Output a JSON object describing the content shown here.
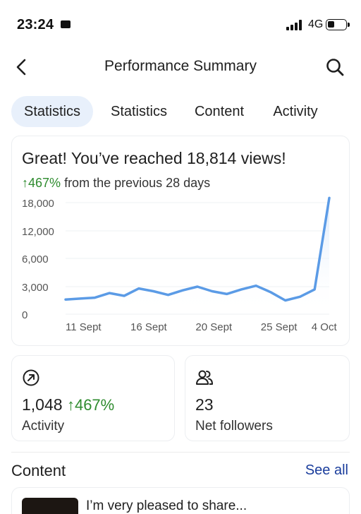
{
  "status_bar": {
    "time": "23:24",
    "network": "4G"
  },
  "header": {
    "title": "Performance Summary"
  },
  "tabs": [
    {
      "label": "Statistics",
      "active": true
    },
    {
      "label": "Statistics",
      "active": false
    },
    {
      "label": "Content",
      "active": false
    },
    {
      "label": "Activity",
      "active": false
    }
  ],
  "views_card": {
    "title": "Great! You’ve reached 18,814 views!",
    "change": "467%",
    "change_suffix": "from the previous 28 days"
  },
  "chart_data": {
    "type": "area",
    "title": "",
    "xlabel": "",
    "ylabel": "",
    "x_tick_labels": [
      "11 Sept",
      "16 Sept",
      "20 Sept",
      "25 Sept",
      "4 Oct"
    ],
    "y_tick_labels": [
      "18,000",
      "12,000",
      "6,000",
      "3,000",
      "0"
    ],
    "y_ticks": [
      18000,
      12000,
      6000,
      3000,
      0
    ],
    "ylim": [
      0,
      18000
    ],
    "grid": true,
    "series": [
      {
        "values": [
          1600,
          1700,
          1800,
          2300,
          2000,
          2800,
          2500,
          2100,
          2600,
          3000,
          2500,
          2200,
          2700,
          3100,
          2400,
          1500,
          1900,
          2700,
          19000
        ]
      }
    ],
    "line_color": "#5b9be6",
    "fill_color": "#dbe9fb"
  },
  "stats": [
    {
      "icon": "arrow-up-right-circle-icon",
      "value": "1,048",
      "change": "467%",
      "label": "Activity"
    },
    {
      "icon": "users-icon",
      "value": "23",
      "change": "",
      "label": "Net followers"
    }
  ],
  "content": {
    "heading": "Content",
    "see_all": "See all",
    "post_text": "I’m very pleased to share..."
  },
  "colors": {
    "accent": "#1a3d9c",
    "positive": "#2e8b2e",
    "active_tab_bg": "#e8f0fb"
  }
}
